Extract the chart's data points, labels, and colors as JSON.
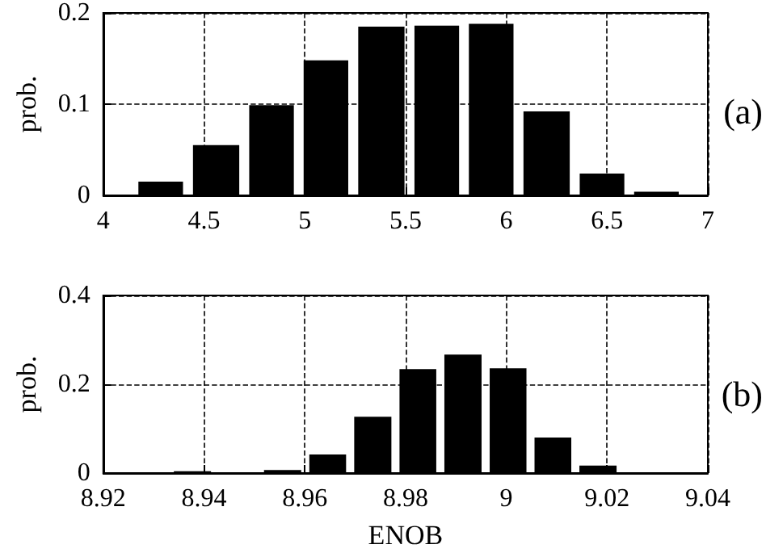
{
  "chart_data": [
    {
      "type": "histogram",
      "ylabel": "prob.",
      "annotations": [
        "(a)"
      ],
      "color": "#000000",
      "bins": [
        4.15,
        4.42,
        4.7,
        4.97,
        5.24,
        5.52,
        5.79,
        6.06,
        6.34,
        6.61,
        6.88
      ],
      "values": [
        0.015,
        0.055,
        0.099,
        0.148,
        0.185,
        0.186,
        0.188,
        0.092,
        0.024,
        0.004
      ],
      "xlim": [
        4,
        7
      ],
      "xticks": [
        4,
        4.5,
        5,
        5.5,
        6,
        6.5,
        7
      ],
      "ylim": [
        0,
        0.2
      ],
      "yticks": [
        0,
        0.1,
        0.2
      ],
      "grid": true
    },
    {
      "type": "histogram",
      "ylabel": "prob.",
      "xlabel": "ENOB",
      "annotations": [
        "(b)"
      ],
      "color": "#000000",
      "bins": [
        8.9332,
        8.9422,
        8.9511,
        8.9601,
        8.969,
        8.978,
        8.9869,
        8.9959,
        9.0048,
        9.0137,
        9.0227
      ],
      "values": [
        0.004,
        0.001,
        0.007,
        0.042,
        0.127,
        0.234,
        0.267,
        0.236,
        0.08,
        0.017
      ],
      "xlim": [
        8.92,
        9.04
      ],
      "xticks": [
        8.92,
        8.94,
        8.96,
        8.98,
        9,
        9.02,
        9.04
      ],
      "ylim": [
        0,
        0.4
      ],
      "yticks": [
        0,
        0.2,
        0.4
      ],
      "grid": true
    }
  ]
}
